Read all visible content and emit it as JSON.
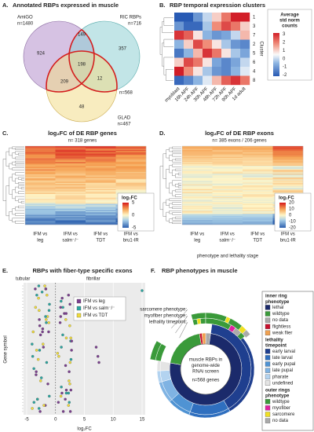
{
  "panels": {
    "a": {
      "label": "A.",
      "title": "Annotated RBPs expressed in muscle",
      "sets": [
        {
          "name": "AmiGO",
          "n": "n=1480",
          "color": "#7d4fa0"
        },
        {
          "name": "RIC RBPs",
          "n": "n=716",
          "color": "#2ba3b3"
        },
        {
          "name": "GLAD",
          "n": "n=467",
          "color": "#d4a21c"
        }
      ],
      "regions": [
        924,
        149,
        357,
        198,
        209,
        12,
        48
      ],
      "outline": "n=568"
    },
    "b": {
      "label": "B.",
      "title": "RBP temporal expression clusters",
      "timepoints": [
        "myoblast",
        "16h APF",
        "24h APF",
        "30h APF",
        "48h APF",
        "72h APF",
        "90h APF",
        "1d adult"
      ],
      "clusters": [
        1,
        3,
        7,
        2,
        5,
        6,
        4,
        8
      ],
      "cluster_axis": "Cluster",
      "legend_title": [
        "Average",
        "std norm",
        "counts"
      ],
      "legend_ticks": [
        3,
        2,
        1,
        0,
        -1,
        -2
      ]
    },
    "c": {
      "label": "C.",
      "title": "log₂FC of DE RBP genes",
      "subtitle": "n= 318 genes",
      "legend_title": "log₂FC",
      "legend_ticks": [
        5,
        0,
        -5
      ]
    },
    "d": {
      "label": "D.",
      "title": "log₂FC of DE RBP exons",
      "subtitle": "n= 385 exons / 206 genes",
      "legend_title": "log₂FC",
      "legend_ticks": [
        20,
        10,
        0,
        -10,
        -20
      ]
    },
    "comparisons": [
      [
        "IFM vs",
        "leg"
      ],
      [
        "IFM vs",
        "salm⁻/⁻"
      ],
      [
        "IFM vs",
        "TDT"
      ],
      [
        "IFM vs",
        "bru1-IR"
      ]
    ],
    "cd_axis": "phenotype and lethality stage",
    "e": {
      "label": "E.",
      "title": "RBPs with fiber-type specific exons",
      "regions": [
        "tubular",
        "fibrillar"
      ],
      "y_axis": "Gene symbol",
      "x_axis": "log₂FC",
      "xticks": [
        -5,
        0,
        5,
        10,
        15
      ],
      "legend": [
        {
          "name": "IFM vs leg",
          "color": "#7b3f8f"
        },
        {
          "name": "IFM vs salm⁻/⁻",
          "color": "#2aa6a0"
        },
        {
          "name": "IFM vs TDT",
          "color": "#f0dc3c"
        }
      ]
    },
    "f": {
      "label": "F.",
      "title": "RBP phenotypes in muscle",
      "center": [
        "muscle RBPs in",
        "genome-wide",
        "RNAi screen"
      ],
      "n": "n=568 genes",
      "ring_labels": [
        "sarcomere phenotype:",
        "myofiber phenotype:",
        "lethality timepoint:"
      ],
      "legend": [
        {
          "title": [
            "inner ring",
            "phenotype"
          ],
          "items": [
            {
              "name": "lethal",
              "color": "#1b2a6b"
            },
            {
              "name": "wildtype",
              "color": "#3a9a3a"
            },
            {
              "name": "no data",
              "color": "#aaaaaa"
            },
            {
              "name": "flightless",
              "color": "#c8102e"
            },
            {
              "name": "weak flier",
              "color": "#f0a050"
            }
          ]
        },
        {
          "title": [
            "lethality",
            "timepoint"
          ],
          "items": [
            {
              "name": "early larval",
              "color": "#1f3f8f"
            },
            {
              "name": "late larval",
              "color": "#2f6fbf"
            },
            {
              "name": "early pupal",
              "color": "#4f93d3"
            },
            {
              "name": "late pupal",
              "color": "#7fb3e3"
            },
            {
              "name": "pharate",
              "color": "#b3d3f0"
            },
            {
              "name": "undefined",
              "color": "#e4e4e4"
            }
          ]
        },
        {
          "title": [
            "outer rings",
            "phenotype"
          ],
          "items": [
            {
              "name": "wildtype",
              "color": "#3a9a3a"
            },
            {
              "name": "myofiber",
              "color": "#e020a0"
            },
            {
              "name": "sarcomere",
              "color": "#f0e020"
            },
            {
              "name": "no data",
              "color": "#aaaaaa"
            }
          ]
        }
      ]
    }
  }
}
